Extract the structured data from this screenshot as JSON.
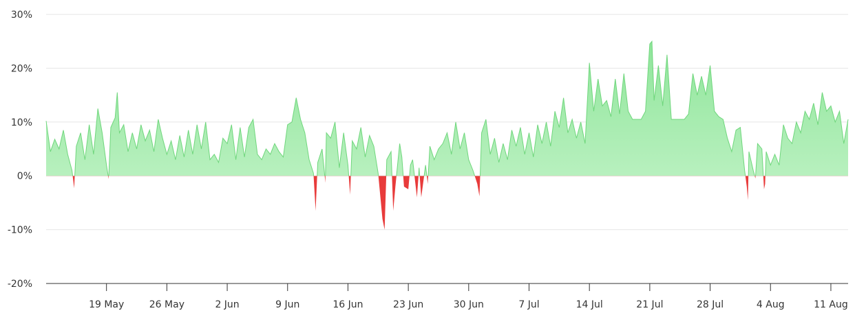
{
  "chart_data": {
    "type": "area",
    "title": "",
    "xlabel": "",
    "ylabel": "",
    "ylim": [
      -20,
      30
    ],
    "y_ticks": [
      {
        "value": 30,
        "label": "30%"
      },
      {
        "value": 20,
        "label": "20%"
      },
      {
        "value": 10,
        "label": "10%"
      },
      {
        "value": 0,
        "label": "0%"
      },
      {
        "value": -10,
        "label": "-10%"
      },
      {
        "value": -20,
        "label": "-20%"
      }
    ],
    "x_start": "2024-05-12",
    "x_end": "2024-08-13",
    "x_ticks": [
      {
        "date": "2024-05-19",
        "label": "19 May"
      },
      {
        "date": "2024-05-26",
        "label": "26 May"
      },
      {
        "date": "2024-06-02",
        "label": "2 Jun"
      },
      {
        "date": "2024-06-09",
        "label": "9 Jun"
      },
      {
        "date": "2024-06-16",
        "label": "16 Jun"
      },
      {
        "date": "2024-06-23",
        "label": "23 Jun"
      },
      {
        "date": "2024-06-30",
        "label": "30 Jun"
      },
      {
        "date": "2024-07-07",
        "label": "7 Jul"
      },
      {
        "date": "2024-07-14",
        "label": "14 Jul"
      },
      {
        "date": "2024-07-21",
        "label": "21 Jul"
      },
      {
        "date": "2024-07-28",
        "label": "28 Jul"
      },
      {
        "date": "2024-08-04",
        "label": "4 Aug"
      },
      {
        "date": "2024-08-11",
        "label": "11 Aug"
      }
    ],
    "grid": true,
    "legend": "none",
    "colors": {
      "positive_top": "#8fe59a",
      "positive_bottom": "#c8f5cd",
      "positive_line": "#6fd67c",
      "negative": "#e83b3b",
      "grid": "#e6e6e6",
      "axis": "#333333"
    },
    "series": [
      {
        "points": [
          [
            "2024-05-12",
            10.2
          ],
          [
            "2024-05-12T12:00",
            4.5
          ],
          [
            "2024-05-13",
            6.8
          ],
          [
            "2024-05-13T12:00",
            5.0
          ],
          [
            "2024-05-14",
            8.5
          ],
          [
            "2024-05-14T12:00",
            4.0
          ],
          [
            "2024-05-15",
            1.0
          ],
          [
            "2024-05-15T06:00",
            -2.3
          ],
          [
            "2024-05-15T12:00",
            5.5
          ],
          [
            "2024-05-16",
            8.0
          ],
          [
            "2024-05-16T12:00",
            3.0
          ],
          [
            "2024-05-17",
            9.5
          ],
          [
            "2024-05-17T12:00",
            4.0
          ],
          [
            "2024-05-18",
            12.5
          ],
          [
            "2024-05-18T12:00",
            8.0
          ],
          [
            "2024-05-19",
            2.0
          ],
          [
            "2024-05-19T06:00",
            -0.6
          ],
          [
            "2024-05-19T12:00",
            9.0
          ],
          [
            "2024-05-20",
            10.8
          ],
          [
            "2024-05-20T06:00",
            15.5
          ],
          [
            "2024-05-20T12:00",
            8.0
          ],
          [
            "2024-05-21",
            9.5
          ],
          [
            "2024-05-21T12:00",
            4.5
          ],
          [
            "2024-05-22",
            8.0
          ],
          [
            "2024-05-22T12:00",
            5.0
          ],
          [
            "2024-05-23",
            9.5
          ],
          [
            "2024-05-23T12:00",
            6.5
          ],
          [
            "2024-05-24",
            8.5
          ],
          [
            "2024-05-24T12:00",
            4.5
          ],
          [
            "2024-05-25",
            10.5
          ],
          [
            "2024-05-25T12:00",
            7.0
          ],
          [
            "2024-05-26",
            4.0
          ],
          [
            "2024-05-26T12:00",
            6.5
          ],
          [
            "2024-05-27",
            3.0
          ],
          [
            "2024-05-27T12:00",
            7.5
          ],
          [
            "2024-05-28",
            3.5
          ],
          [
            "2024-05-28T12:00",
            8.5
          ],
          [
            "2024-05-29",
            4.0
          ],
          [
            "2024-05-29T12:00",
            9.5
          ],
          [
            "2024-05-30",
            5.0
          ],
          [
            "2024-05-30T12:00",
            10.0
          ],
          [
            "2024-05-31",
            3.0
          ],
          [
            "2024-05-31T12:00",
            4.0
          ],
          [
            "2024-06-01",
            2.5
          ],
          [
            "2024-06-01T12:00",
            7.0
          ],
          [
            "2024-06-02",
            6.0
          ],
          [
            "2024-06-02T12:00",
            9.5
          ],
          [
            "2024-06-03",
            3.0
          ],
          [
            "2024-06-03T12:00",
            9.0
          ],
          [
            "2024-06-04",
            3.5
          ],
          [
            "2024-06-04T12:00",
            9.0
          ],
          [
            "2024-06-05",
            10.5
          ],
          [
            "2024-06-05T12:00",
            4.0
          ],
          [
            "2024-06-06",
            3.0
          ],
          [
            "2024-06-06T12:00",
            5.0
          ],
          [
            "2024-06-07",
            4.0
          ],
          [
            "2024-06-07T12:00",
            6.0
          ],
          [
            "2024-06-08",
            4.5
          ],
          [
            "2024-06-08T12:00",
            3.5
          ],
          [
            "2024-06-09",
            9.5
          ],
          [
            "2024-06-09T12:00",
            10.0
          ],
          [
            "2024-06-10",
            14.5
          ],
          [
            "2024-06-10T12:00",
            10.5
          ],
          [
            "2024-06-11",
            8.0
          ],
          [
            "2024-06-11T12:00",
            3.0
          ],
          [
            "2024-06-12",
            0.5
          ],
          [
            "2024-06-12T06:00",
            -6.5
          ],
          [
            "2024-06-12T12:00",
            2.5
          ],
          [
            "2024-06-13",
            5.0
          ],
          [
            "2024-06-13T06:00",
            1.0
          ],
          [
            "2024-06-13T09:00",
            -1.3
          ],
          [
            "2024-06-13T12:00",
            8.0
          ],
          [
            "2024-06-14",
            7.0
          ],
          [
            "2024-06-14T12:00",
            10.0
          ],
          [
            "2024-06-15",
            1.5
          ],
          [
            "2024-06-15T12:00",
            8.0
          ],
          [
            "2024-06-16",
            2.0
          ],
          [
            "2024-06-16T06:00",
            -3.5
          ],
          [
            "2024-06-16T12:00",
            6.5
          ],
          [
            "2024-06-17",
            5.0
          ],
          [
            "2024-06-17T12:00",
            9.0
          ],
          [
            "2024-06-18",
            3.5
          ],
          [
            "2024-06-18T12:00",
            7.5
          ],
          [
            "2024-06-19",
            5.5
          ],
          [
            "2024-06-19T12:00",
            0.5
          ],
          [
            "2024-06-20",
            -8.0
          ],
          [
            "2024-06-20T06:00",
            -10.0
          ],
          [
            "2024-06-20T12:00",
            3.0
          ],
          [
            "2024-06-21",
            4.5
          ],
          [
            "2024-06-21T06:00",
            -6.5
          ],
          [
            "2024-06-21T12:00",
            -2.0
          ],
          [
            "2024-06-22",
            6.0
          ],
          [
            "2024-06-22T06:00",
            3.5
          ],
          [
            "2024-06-22T12:00",
            -2.0
          ],
          [
            "2024-06-23",
            -2.5
          ],
          [
            "2024-06-23T06:00",
            2.0
          ],
          [
            "2024-06-23T12:00",
            3.0
          ],
          [
            "2024-06-24",
            -4.0
          ],
          [
            "2024-06-24T06:00",
            1.5
          ],
          [
            "2024-06-24T12:00",
            -4.0
          ],
          [
            "2024-06-25",
            2.0
          ],
          [
            "2024-06-25T06:00",
            -1.5
          ],
          [
            "2024-06-25T12:00",
            5.5
          ],
          [
            "2024-06-26",
            3.0
          ],
          [
            "2024-06-26T12:00",
            5.0
          ],
          [
            "2024-06-27",
            6.0
          ],
          [
            "2024-06-27T12:00",
            8.0
          ],
          [
            "2024-06-28",
            4.0
          ],
          [
            "2024-06-28T12:00",
            10.0
          ],
          [
            "2024-06-29",
            5.0
          ],
          [
            "2024-06-29T12:00",
            8.0
          ],
          [
            "2024-06-30",
            3.0
          ],
          [
            "2024-06-30T12:00",
            1.0
          ],
          [
            "2024-07-01",
            -1.5
          ],
          [
            "2024-07-01T06:00",
            -3.8
          ],
          [
            "2024-07-01T12:00",
            8.0
          ],
          [
            "2024-07-02",
            10.5
          ],
          [
            "2024-07-02T12:00",
            4.0
          ],
          [
            "2024-07-03",
            7.0
          ],
          [
            "2024-07-03T12:00",
            2.5
          ],
          [
            "2024-07-04",
            6.0
          ],
          [
            "2024-07-04T12:00",
            3.0
          ],
          [
            "2024-07-05",
            8.5
          ],
          [
            "2024-07-05T12:00",
            5.5
          ],
          [
            "2024-07-06",
            9.0
          ],
          [
            "2024-07-06T12:00",
            4.0
          ],
          [
            "2024-07-07",
            8.0
          ],
          [
            "2024-07-07T12:00",
            3.5
          ],
          [
            "2024-07-08",
            9.5
          ],
          [
            "2024-07-08T12:00",
            6.0
          ],
          [
            "2024-07-09",
            10.0
          ],
          [
            "2024-07-09T12:00",
            5.5
          ],
          [
            "2024-07-10",
            12.0
          ],
          [
            "2024-07-10T12:00",
            9.0
          ],
          [
            "2024-07-11",
            14.5
          ],
          [
            "2024-07-11T12:00",
            8.0
          ],
          [
            "2024-07-12",
            10.5
          ],
          [
            "2024-07-12T12:00",
            7.0
          ],
          [
            "2024-07-13",
            10.0
          ],
          [
            "2024-07-13T12:00",
            6.0
          ],
          [
            "2024-07-14",
            21.0
          ],
          [
            "2024-07-14T12:00",
            12.0
          ],
          [
            "2024-07-15",
            18.0
          ],
          [
            "2024-07-15T12:00",
            13.0
          ],
          [
            "2024-07-16",
            14.0
          ],
          [
            "2024-07-16T12:00",
            11.0
          ],
          [
            "2024-07-17",
            18.0
          ],
          [
            "2024-07-17T12:00",
            11.5
          ],
          [
            "2024-07-18",
            19.0
          ],
          [
            "2024-07-18T12:00",
            12.0
          ],
          [
            "2024-07-19",
            10.5
          ],
          [
            "2024-07-19T12:00",
            10.5
          ],
          [
            "2024-07-20",
            10.5
          ],
          [
            "2024-07-20T12:00",
            12.0
          ],
          [
            "2024-07-21",
            24.5
          ],
          [
            "2024-07-21T06:00",
            25.0
          ],
          [
            "2024-07-21T12:00",
            14.0
          ],
          [
            "2024-07-22",
            20.5
          ],
          [
            "2024-07-22T12:00",
            13.0
          ],
          [
            "2024-07-23",
            22.5
          ],
          [
            "2024-07-23T12:00",
            10.5
          ],
          [
            "2024-07-24",
            10.5
          ],
          [
            "2024-07-24T12:00",
            10.5
          ],
          [
            "2024-07-25",
            10.5
          ],
          [
            "2024-07-25T12:00",
            11.5
          ],
          [
            "2024-07-26",
            19.0
          ],
          [
            "2024-07-26T12:00",
            15.0
          ],
          [
            "2024-07-27",
            18.5
          ],
          [
            "2024-07-27T12:00",
            15.0
          ],
          [
            "2024-07-28",
            20.5
          ],
          [
            "2024-07-28T12:00",
            12.0
          ],
          [
            "2024-07-29",
            11.0
          ],
          [
            "2024-07-29T12:00",
            10.5
          ],
          [
            "2024-07-30",
            7.0
          ],
          [
            "2024-07-30T12:00",
            4.5
          ],
          [
            "2024-07-31",
            8.5
          ],
          [
            "2024-07-31T12:00",
            9.0
          ],
          [
            "2024-08-01",
            1.0
          ],
          [
            "2024-08-01T06:00",
            -2.0
          ],
          [
            "2024-08-01T09:00",
            -4.5
          ],
          [
            "2024-08-01T12:00",
            4.5
          ],
          [
            "2024-08-02",
            1.0
          ],
          [
            "2024-08-02T06:00",
            -0.5
          ],
          [
            "2024-08-02T12:00",
            6.0
          ],
          [
            "2024-08-03",
            5.0
          ],
          [
            "2024-08-03T06:00",
            -2.5
          ],
          [
            "2024-08-03T09:00",
            -1.5
          ],
          [
            "2024-08-03T12:00",
            4.5
          ],
          [
            "2024-08-04",
            2.0
          ],
          [
            "2024-08-04T12:00",
            4.0
          ],
          [
            "2024-08-05",
            2.0
          ],
          [
            "2024-08-05T12:00",
            9.5
          ],
          [
            "2024-08-06",
            7.0
          ],
          [
            "2024-08-06T12:00",
            6.0
          ],
          [
            "2024-08-07",
            10.0
          ],
          [
            "2024-08-07T12:00",
            8.0
          ],
          [
            "2024-08-08",
            12.0
          ],
          [
            "2024-08-08T12:00",
            10.5
          ],
          [
            "2024-08-09",
            13.5
          ],
          [
            "2024-08-09T12:00",
            9.5
          ],
          [
            "2024-08-10",
            15.5
          ],
          [
            "2024-08-10T12:00",
            12.0
          ],
          [
            "2024-08-11",
            13.0
          ],
          [
            "2024-08-11T12:00",
            10.0
          ],
          [
            "2024-08-12",
            12.0
          ],
          [
            "2024-08-12T12:00",
            6.0
          ],
          [
            "2024-08-13",
            10.5
          ]
        ]
      }
    ]
  }
}
